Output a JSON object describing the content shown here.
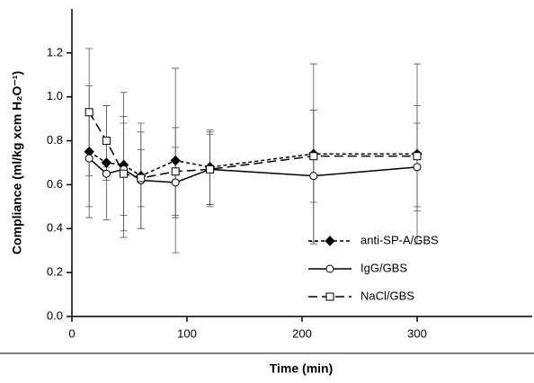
{
  "chart_data": {
    "type": "line",
    "xlabel": "Time (min)",
    "ylabel": "Compliance (ml/kg xcm H₂O⁻¹)",
    "x": [
      15,
      30,
      45,
      60,
      90,
      120,
      210,
      300
    ],
    "series": [
      {
        "name": "anti-SP-A/GBS",
        "color": "#000000",
        "line_style": "dotted",
        "marker": "diamond-filled",
        "values": [
          0.75,
          0.7,
          0.69,
          0.64,
          0.71,
          0.68,
          0.74,
          0.74
        ],
        "errors": [
          0.3,
          0.26,
          0.33,
          0.24,
          0.42,
          0.17,
          0.41,
          0.41
        ]
      },
      {
        "name": "IgG/GBS",
        "color": "#000000",
        "line_style": "solid",
        "marker": "circle-open",
        "values": [
          0.72,
          0.65,
          0.67,
          0.62,
          0.61,
          0.67,
          0.64,
          0.68
        ],
        "errors": [
          0.22,
          0.03,
          0.21,
          0.22,
          0.16,
          0.16,
          0.3,
          0.2
        ]
      },
      {
        "name": "NaCl/GBS",
        "color": "#000000",
        "line_style": "dashed",
        "marker": "square-open",
        "values": [
          0.93,
          0.8,
          0.65,
          0.63,
          0.66,
          0.67,
          0.73,
          0.73
        ],
        "errors": [
          0.29,
          0.16,
          0.26,
          0.13,
          0.2,
          0.17,
          0.21,
          0.23
        ]
      }
    ],
    "xlim": [
      0,
      400
    ],
    "xticks": [
      0,
      100,
      200,
      300
    ],
    "ylim": [
      0,
      1.4
    ],
    "yticks": [
      {
        "value": 0,
        "label": "0.0"
      },
      0.2,
      0.4,
      0.6,
      0.8,
      {
        "value": 1,
        "label": "1.0"
      },
      1.2
    ],
    "grid": false,
    "legend": "lower right"
  }
}
